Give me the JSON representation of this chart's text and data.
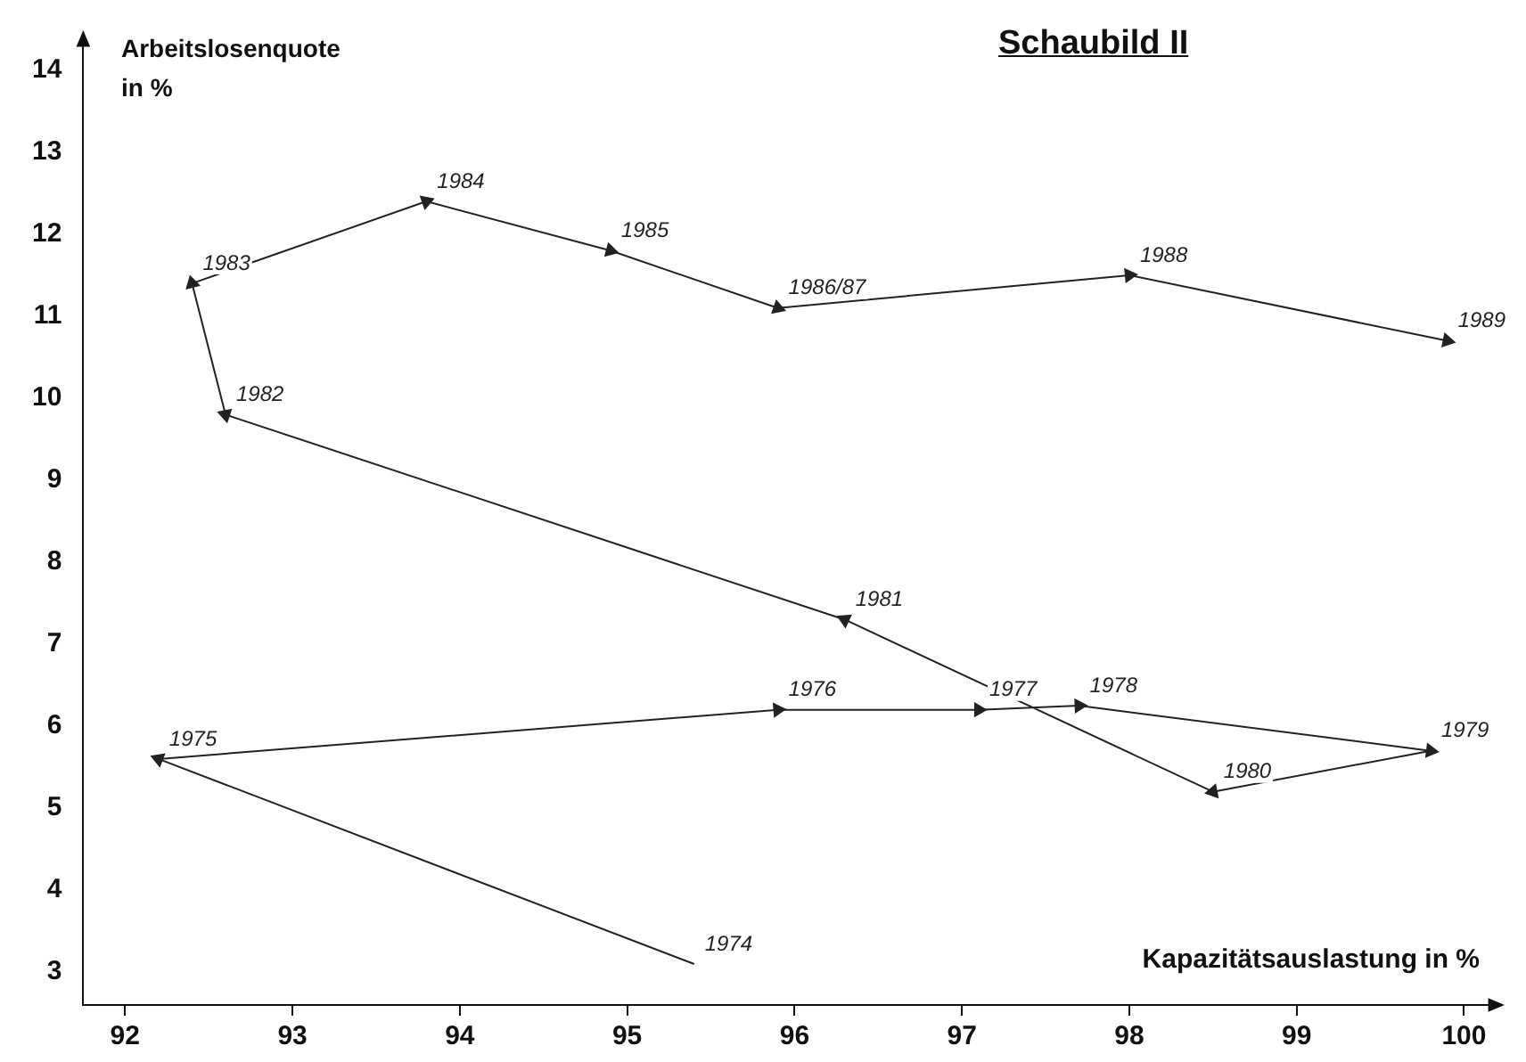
{
  "chart_data": {
    "type": "line",
    "title": "Schaubild II",
    "xlabel": "Kapazitätsauslastung in %",
    "ylabel": "Arbeitslosenquote\nin %",
    "x": [
      95.4,
      92.2,
      95.9,
      97.1,
      97.7,
      99.8,
      98.5,
      96.3,
      92.6,
      92.4,
      93.8,
      94.9,
      95.9,
      98.0,
      99.9
    ],
    "values": [
      3.1,
      5.6,
      6.2,
      6.2,
      6.25,
      5.7,
      5.2,
      7.3,
      9.8,
      11.4,
      12.4,
      11.8,
      11.1,
      11.5,
      10.7
    ],
    "annotations": [
      {
        "text": "1974",
        "x": 95.4,
        "y": 3.1
      },
      {
        "text": "1975",
        "x": 92.2,
        "y": 5.6
      },
      {
        "text": "1976",
        "x": 95.9,
        "y": 6.2
      },
      {
        "text": "1977",
        "x": 97.1,
        "y": 6.2
      },
      {
        "text": "1978",
        "x": 97.7,
        "y": 6.25
      },
      {
        "text": "1979",
        "x": 99.8,
        "y": 5.7
      },
      {
        "text": "1980",
        "x": 98.5,
        "y": 5.2
      },
      {
        "text": "1981",
        "x": 96.3,
        "y": 7.3
      },
      {
        "text": "1982",
        "x": 92.6,
        "y": 9.8
      },
      {
        "text": "1983",
        "x": 92.4,
        "y": 11.4
      },
      {
        "text": "1984",
        "x": 93.8,
        "y": 12.4
      },
      {
        "text": "1985",
        "x": 94.9,
        "y": 11.8
      },
      {
        "text": "1986/87",
        "x": 95.9,
        "y": 11.1
      },
      {
        "text": "1988",
        "x": 98.0,
        "y": 11.5
      },
      {
        "text": "1989",
        "x": 99.9,
        "y": 10.7
      }
    ],
    "color": "#222222",
    "marker": "triangle",
    "line_style": "solid",
    "grid": false,
    "legend": false,
    "xlim": [
      91.75,
      100.2
    ],
    "xticks": [
      92,
      93,
      94,
      95,
      96,
      97,
      98,
      99,
      100
    ],
    "ylim": [
      2.6,
      14.4
    ],
    "yticks": [
      3,
      4,
      5,
      6,
      7,
      8,
      9,
      10,
      11,
      12,
      13,
      14
    ]
  }
}
